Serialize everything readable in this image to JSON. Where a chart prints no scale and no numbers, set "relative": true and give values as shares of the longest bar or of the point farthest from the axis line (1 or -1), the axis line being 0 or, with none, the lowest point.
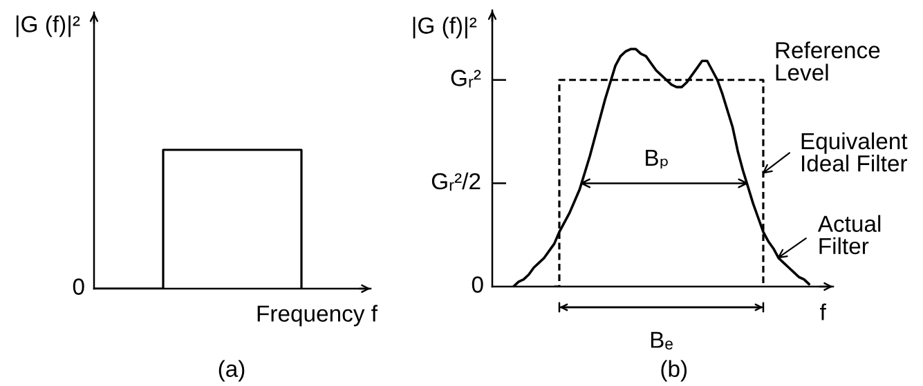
{
  "chart_data": [
    {
      "type": "step",
      "relative": true,
      "title": "(a)",
      "xlabel": "Frequency f",
      "ylabel": "|G (f)|²",
      "categories": [
        null,
        null,
        null,
        null
      ],
      "values": [
        0,
        1,
        1,
        0
      ],
      "color": "#000000",
      "annotations": [
        "0"
      ]
    },
    {
      "type": "line",
      "relative": true,
      "title": "(b)",
      "xlabel": "f",
      "ylabel": "|G (f)|²",
      "categories": [
        null,
        null,
        null,
        null,
        null,
        null,
        null,
        null,
        null,
        null,
        null,
        null,
        null,
        null,
        null,
        null,
        null,
        null,
        null,
        null,
        null,
        null,
        null,
        null,
        null,
        null,
        null,
        null,
        null,
        null,
        null,
        null,
        null,
        null,
        null,
        null,
        null,
        null,
        null,
        null,
        null,
        null,
        null,
        null,
        null,
        null,
        null,
        null,
        null,
        null,
        null,
        null,
        null,
        null,
        null,
        null,
        null,
        null,
        null
      ],
      "series": [
        {
          "type": "line",
          "color": "#000000",
          "values": [
            0,
            0.02,
            0.03,
            0.05,
            0.08,
            0.1,
            0.12,
            0.15,
            0.18,
            0.23,
            0.27,
            0.31,
            0.36,
            0.41,
            0.48,
            0.55,
            0.63,
            0.71,
            0.79,
            0.86,
            0.93,
            0.97,
            0.99,
            1,
            1,
            0.98,
            0.97,
            0.94,
            0.91,
            0.89,
            0.87,
            0.85,
            0.84,
            0.84,
            0.86,
            0.89,
            0.92,
            0.95,
            0.95,
            0.91,
            0.87,
            0.81,
            0.74,
            0.67,
            0.57,
            0.49,
            0.42,
            0.35,
            0.29,
            0.23,
            0.19,
            0.16,
            0.12,
            0.1,
            0.08,
            0.06,
            0.04,
            0.03,
            0.01
          ]
        },
        {
          "type": "step",
          "color": "#000000",
          "line_style": "dashed",
          "values": [
            null,
            null,
            null,
            null,
            null,
            null,
            null,
            null,
            0,
            0.87,
            0.87,
            0.87,
            0.87,
            0.87,
            0.87,
            0.87,
            0.87,
            0.87,
            0.87,
            0.87,
            0.87,
            0.87,
            0.87,
            0.87,
            0.87,
            0.87,
            0.87,
            0.87,
            0.87,
            0.87,
            0.87,
            0.87,
            0.87,
            0.87,
            0.87,
            0.87,
            0.87,
            0.87,
            0.87,
            0.87,
            0.87,
            0.87,
            0.87,
            0.87,
            0.87,
            0.87,
            0.87,
            0.87,
            0.87,
            0,
            null,
            null,
            null,
            null,
            null,
            null,
            null,
            null,
            null
          ]
        }
      ],
      "ref_lines": [
        {
          "axis": "y",
          "value": 0.435,
          "label": "Bₚ",
          "color": "#000000",
          "line_style": "solid"
        }
      ],
      "annotations": [
        "0",
        "Gᵣ²/2",
        "Gᵣ²",
        "Bₑ",
        "Reference\nLevel",
        "Equivalent\nIdeal Filter",
        "Actual\nFilter"
      ]
    }
  ]
}
